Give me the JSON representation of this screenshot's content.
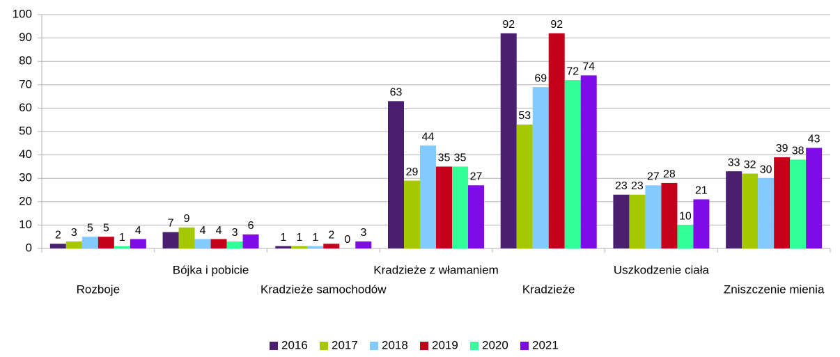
{
  "chart_data": {
    "type": "bar",
    "categories": [
      "Rozboje",
      "Bójka i pobicie",
      "Kradzieże samochodów",
      "Kradzieże z włamaniem",
      "Kradzieże",
      "Uszkodzenie ciała",
      "Zniszczenie mienia"
    ],
    "series": [
      {
        "name": "2016",
        "color": "#4b1f6f",
        "values": [
          2,
          7,
          1,
          63,
          92,
          23,
          33
        ]
      },
      {
        "name": "2017",
        "color": "#a5c800",
        "values": [
          3,
          9,
          1,
          29,
          53,
          23,
          32
        ]
      },
      {
        "name": "2018",
        "color": "#83caff",
        "values": [
          5,
          4,
          1,
          44,
          69,
          27,
          30
        ]
      },
      {
        "name": "2019",
        "color": "#c5001a",
        "values": [
          5,
          4,
          2,
          35,
          92,
          28,
          39
        ]
      },
      {
        "name": "2020",
        "color": "#33ff99",
        "values": [
          1,
          3,
          0,
          35,
          72,
          10,
          38
        ]
      },
      {
        "name": "2021",
        "color": "#7e0ce6",
        "values": [
          4,
          6,
          3,
          27,
          74,
          21,
          43
        ]
      }
    ],
    "ylim": [
      0,
      100
    ],
    "yticks": [
      0,
      10,
      20,
      30,
      40,
      50,
      60,
      70,
      80,
      90,
      100
    ],
    "grid": true,
    "legend": "bottom"
  }
}
